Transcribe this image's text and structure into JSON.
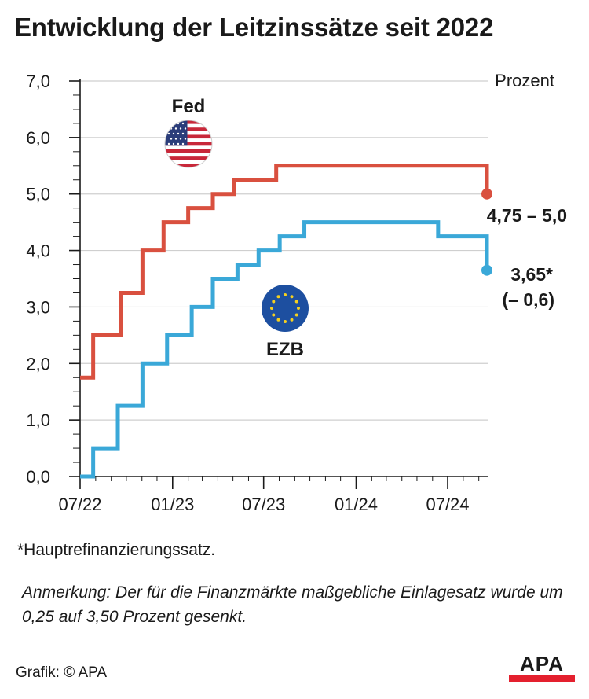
{
  "title": "Entwicklung der Leitzinssätze seit 2022",
  "unit_label": "Prozent",
  "footnote": "*Hauptrefinanzierungssatz.",
  "note": "Anmerkung: Der für die Finanzmärkte maßgebliche Einlagesatz wurde um 0,25 auf 3,50 Prozent gesenkt.",
  "credit": "Grafik: © APA",
  "logo_text": "APA",
  "colors": {
    "fed": "#d9503f",
    "ezb": "#3aa8d8",
    "grid": "#cfcfcf",
    "logo_red": "#e4202e"
  },
  "icons": {
    "fed": "us-flag-icon",
    "ezb": "eu-flag-icon"
  },
  "chart_data": {
    "type": "line",
    "step": true,
    "ylim": [
      0,
      7
    ],
    "yticks": [
      "0,0",
      "1,0",
      "2,0",
      "3,0",
      "4,0",
      "5,0",
      "6,0",
      "7,0"
    ],
    "xticks": [
      {
        "label": "07/22",
        "x": "2022-07-01"
      },
      {
        "label": "01/23",
        "x": "2023-01-01"
      },
      {
        "label": "07/23",
        "x": "2023-07-01"
      },
      {
        "label": "01/24",
        "x": "2024-01-01"
      },
      {
        "label": "07/24",
        "x": "2024-07-01"
      }
    ],
    "xlim": [
      "2022-07-01",
      "2024-10-01"
    ],
    "grid": true,
    "series": [
      {
        "name": "Fed",
        "end_label": "4,75 – 5,0",
        "points": [
          [
            "2022-07-01",
            1.75
          ],
          [
            "2022-07-27",
            2.5
          ],
          [
            "2022-09-21",
            3.25
          ],
          [
            "2022-11-02",
            4.0
          ],
          [
            "2022-12-14",
            4.5
          ],
          [
            "2023-02-01",
            4.75
          ],
          [
            "2023-03-22",
            5.0
          ],
          [
            "2023-05-03",
            5.25
          ],
          [
            "2023-07-26",
            5.5
          ],
          [
            "2024-09-18",
            5.0
          ]
        ],
        "end": "2024-09-18"
      },
      {
        "name": "EZB",
        "end_label": "3,65*",
        "end_label_2": "(– 0,6)",
        "points": [
          [
            "2022-07-01",
            0.0
          ],
          [
            "2022-07-27",
            0.5
          ],
          [
            "2022-09-14",
            1.25
          ],
          [
            "2022-11-02",
            2.0
          ],
          [
            "2022-12-21",
            2.5
          ],
          [
            "2023-02-08",
            3.0
          ],
          [
            "2023-03-22",
            3.5
          ],
          [
            "2023-05-10",
            3.75
          ],
          [
            "2023-06-21",
            4.0
          ],
          [
            "2023-08-02",
            4.25
          ],
          [
            "2023-09-20",
            4.5
          ],
          [
            "2024-06-12",
            4.25
          ],
          [
            "2024-09-18",
            3.65
          ]
        ],
        "end": "2024-09-18"
      }
    ]
  }
}
